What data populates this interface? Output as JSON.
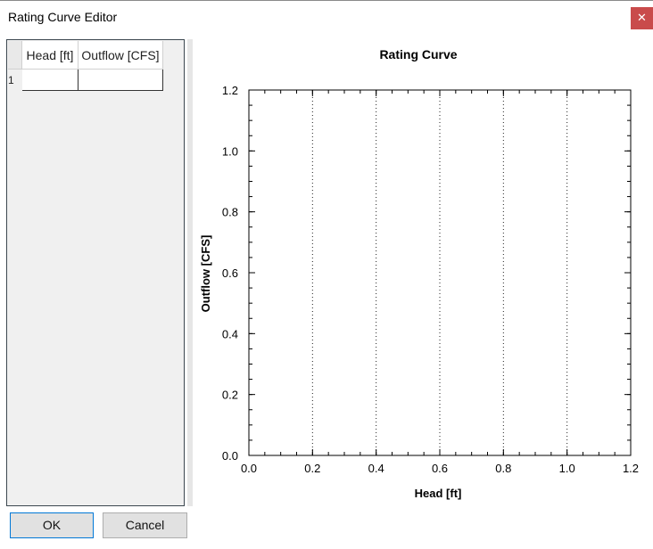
{
  "window": {
    "title": "Rating Curve Editor",
    "close_glyph": "✕"
  },
  "grid": {
    "columns": [
      "Head [ft]",
      "Outflow [CFS]"
    ],
    "rows": [
      {
        "number": "1",
        "head": "",
        "outflow": ""
      }
    ]
  },
  "buttons": {
    "ok_label": "OK",
    "cancel_label": "Cancel"
  },
  "chart_data": {
    "type": "scatter",
    "title": "Rating Curve",
    "xlabel": "Head [ft]",
    "ylabel": "Outflow [CFS]",
    "xlim": [
      0.0,
      1.2
    ],
    "ylim": [
      0.0,
      1.2
    ],
    "x_ticks": [
      "0.0",
      "0.2",
      "0.4",
      "0.6",
      "0.8",
      "1.0",
      "1.2"
    ],
    "y_ticks": [
      "0.0",
      "0.2",
      "0.4",
      "0.6",
      "0.8",
      "1.0",
      "1.2"
    ],
    "vertical_grid": "dotted",
    "series": [
      {
        "x": [],
        "y": []
      }
    ]
  }
}
